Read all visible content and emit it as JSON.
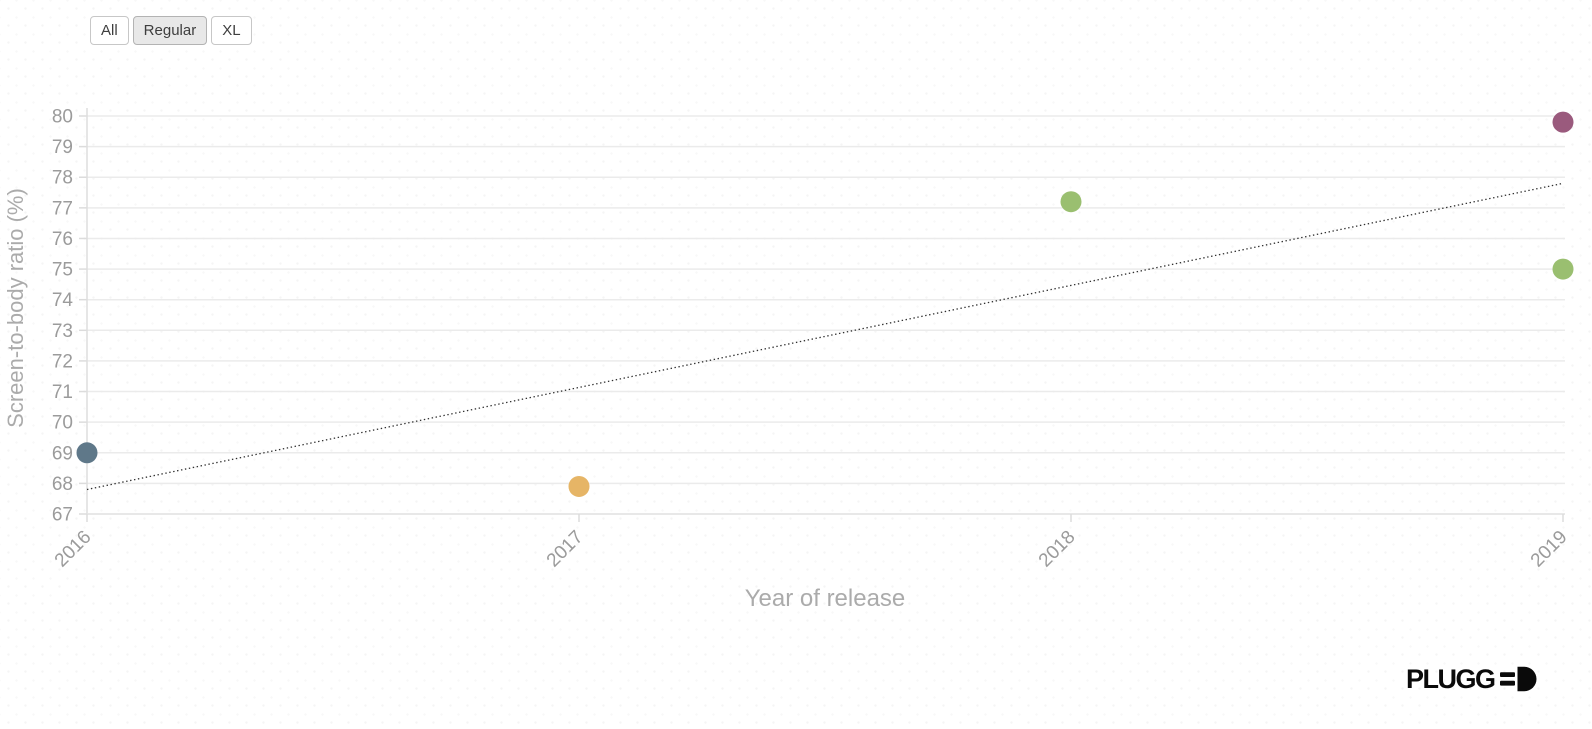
{
  "filters": {
    "options": [
      {
        "label": "All",
        "selected": false
      },
      {
        "label": "Regular",
        "selected": true
      },
      {
        "label": "XL",
        "selected": false
      }
    ]
  },
  "chart_data": {
    "type": "scatter",
    "title": "",
    "xlabel": "Year of release",
    "ylabel": "Screen-to-body ratio (%)",
    "xlim": [
      2016,
      2019
    ],
    "ylim": [
      67,
      80
    ],
    "xticks": [
      2016,
      2017,
      2018,
      2019
    ],
    "yticks": [
      67,
      68,
      69,
      70,
      71,
      72,
      73,
      74,
      75,
      76,
      77,
      78,
      79,
      80
    ],
    "grid": "horizontal",
    "legend": "none",
    "points": [
      {
        "x": 2016,
        "y": 69.0,
        "color": "#5f7889"
      },
      {
        "x": 2017,
        "y": 67.9,
        "color": "#e6b566"
      },
      {
        "x": 2018,
        "y": 77.2,
        "color": "#9abf70"
      },
      {
        "x": 2019,
        "y": 79.8,
        "color": "#9a5a7d"
      },
      {
        "x": 2019,
        "y": 75.0,
        "color": "#9abf70"
      }
    ],
    "trendline": {
      "x1": 2016,
      "y1": 67.8,
      "x2": 2019,
      "y2": 77.8,
      "style": "dotted",
      "color": "#2f2f2f"
    }
  },
  "branding": {
    "logo_main": "PLUGG",
    "logo_suffix": "D",
    "logo_icon": "plug-prongs-d-icon"
  }
}
